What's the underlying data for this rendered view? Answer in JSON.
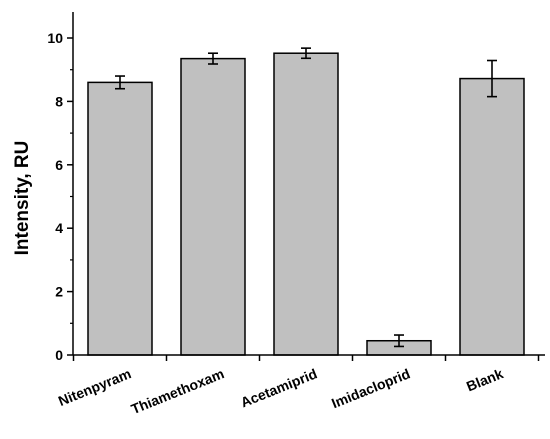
{
  "chart_data": {
    "type": "bar",
    "title": "",
    "xlabel": "",
    "ylabel": "Intensity, RU",
    "ylim": [
      0,
      10.8
    ],
    "yticks": [
      0,
      2,
      4,
      6,
      8,
      10
    ],
    "ytick_labels": [
      "0",
      "2",
      "4",
      "6",
      "8",
      "10"
    ],
    "categories": [
      "Nitenpyram",
      "Thiamethoxam",
      "Acetamiprid",
      "Imidacloprid",
      "Blank"
    ],
    "values": [
      8.6,
      9.35,
      9.52,
      0.45,
      8.72
    ],
    "errors": [
      0.2,
      0.17,
      0.16,
      0.18,
      0.57
    ],
    "bar_color": "#c0c0c0",
    "edge_color": "#000000",
    "grid": false,
    "legend": "none"
  }
}
